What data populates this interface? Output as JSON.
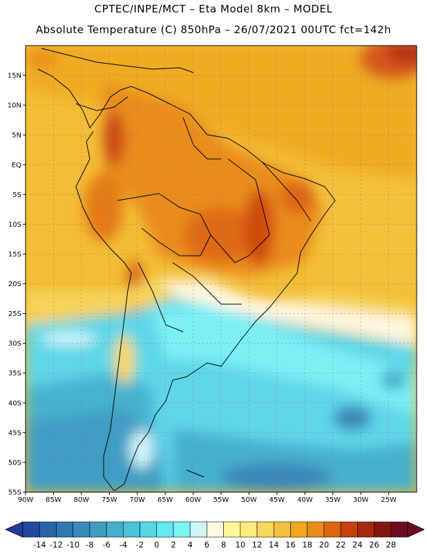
{
  "title": {
    "line1": "CPTEC/INPE/MCT –  Eta Model 8km – MODEL",
    "line2": "Absolute Temperature (C) 850hPa – 26/07/2021 00UTC fct=142h"
  },
  "map": {
    "lon_range": [
      -90,
      -20
    ],
    "lat_range": [
      -55,
      20
    ],
    "lat_labels": [
      "15N",
      "10N",
      "5N",
      "EQ",
      "5S",
      "10S",
      "15S",
      "20S",
      "25S",
      "30S",
      "35S",
      "40S",
      "45S",
      "50S",
      "55S"
    ],
    "lat_values": [
      15,
      10,
      5,
      0,
      -5,
      -10,
      -15,
      -20,
      -25,
      -30,
      -35,
      -40,
      -45,
      -50,
      -55
    ],
    "lon_labels": [
      "90W",
      "85W",
      "80W",
      "75W",
      "70W",
      "65W",
      "60W",
      "55W",
      "50W",
      "45W",
      "40W",
      "35W",
      "30W",
      "25W"
    ],
    "lon_values": [
      -90,
      -85,
      -80,
      -75,
      -70,
      -65,
      -60,
      -55,
      -50,
      -45,
      -40,
      -35,
      -30,
      -25
    ],
    "grid": "dotted"
  },
  "colorbar": {
    "levels": [
      "-14",
      "-12",
      "-10",
      "-8",
      "-6",
      "-4",
      "-2",
      "0",
      "2",
      "4",
      "6",
      "8",
      "10",
      "12",
      "14",
      "16",
      "18",
      "20",
      "22",
      "24",
      "26",
      "28"
    ],
    "under_color": "#1f3f99",
    "over_color": "#6e0a1e",
    "colors": [
      "#22479d",
      "#2a63a8",
      "#3277b2",
      "#3a8ab9",
      "#409dc2",
      "#45b0cc",
      "#4cc4d8",
      "#55d8e6",
      "#62eaf2",
      "#7cf5f5",
      "#cdf6fa",
      "#fff8e3",
      "#fff79a",
      "#fdec7c",
      "#f8d75e",
      "#f3c23c",
      "#f0a81c",
      "#ea8c19",
      "#de6512",
      "#c6400c",
      "#a62a0c",
      "#84150e",
      "#6e0a1e"
    ]
  }
}
